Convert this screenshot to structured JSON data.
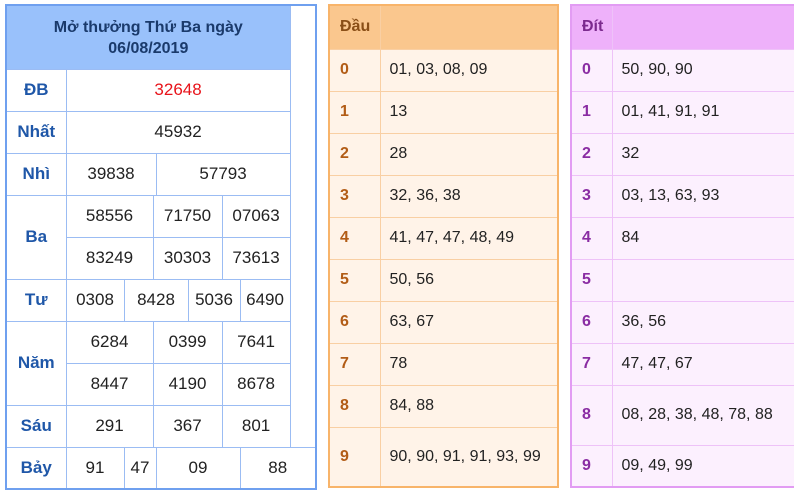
{
  "results": {
    "title": "Mở thưởng Thứ Ba ngày",
    "date": "06/08/2019",
    "labels": {
      "db": "ĐB",
      "nhat": "Nhất",
      "nhi": "Nhì",
      "ba": "Ba",
      "tu": "Tư",
      "nam": "Năm",
      "sau": "Sáu",
      "bay": "Bảy"
    },
    "db": [
      "32648"
    ],
    "nhat": [
      "45932"
    ],
    "nhi": [
      "39838",
      "57793"
    ],
    "ba": [
      "58556",
      "71750",
      "07063",
      "83249",
      "30303",
      "73613"
    ],
    "tu": [
      "0308",
      "8428",
      "5036",
      "6490"
    ],
    "nam": [
      "6284",
      "0399",
      "7641",
      "8447",
      "4190",
      "8678"
    ],
    "sau": [
      "291",
      "367",
      "801"
    ],
    "bay": [
      "91",
      "47",
      "09",
      "88"
    ],
    "special_color": "#e8131a"
  },
  "dau": {
    "header": "Đầu",
    "rows": [
      {
        "n": "0",
        "v": "01, 03, 08, 09"
      },
      {
        "n": "1",
        "v": "13"
      },
      {
        "n": "2",
        "v": "28"
      },
      {
        "n": "3",
        "v": "32, 36, 38"
      },
      {
        "n": "4",
        "v": "41, 47, 47, 48, 49"
      },
      {
        "n": "5",
        "v": "50, 56"
      },
      {
        "n": "6",
        "v": "63, 67"
      },
      {
        "n": "7",
        "v": "78"
      },
      {
        "n": "8",
        "v": "84, 88"
      },
      {
        "n": "9",
        "v": "90, 90, 91, 91, 93, 99"
      }
    ]
  },
  "dit": {
    "header": "Đít",
    "rows": [
      {
        "n": "0",
        "v": "50, 90, 90"
      },
      {
        "n": "1",
        "v": "01, 41, 91, 91"
      },
      {
        "n": "2",
        "v": "32"
      },
      {
        "n": "3",
        "v": "03, 13, 63, 93"
      },
      {
        "n": "4",
        "v": "84"
      },
      {
        "n": "5",
        "v": ""
      },
      {
        "n": "6",
        "v": "36, 56"
      },
      {
        "n": "7",
        "v": "47, 47, 67"
      },
      {
        "n": "8",
        "v": "08, 28, 38, 48, 78, 88"
      },
      {
        "n": "9",
        "v": "09, 49, 99"
      }
    ]
  }
}
